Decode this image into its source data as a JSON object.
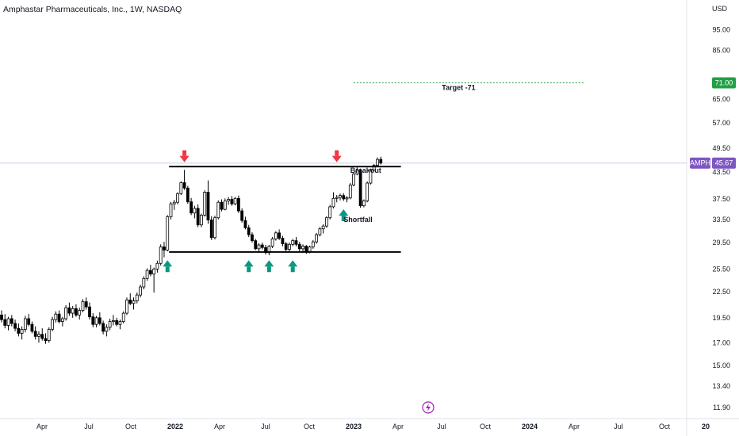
{
  "header": {
    "title": "Amphastar Pharmaceuticals, Inc., 1W, NASDAQ"
  },
  "chart_data": {
    "type": "candlestick",
    "symbol": "AMPH",
    "currency": "USD",
    "y_scale": "log",
    "ylim": [
      11.2,
      112
    ],
    "y_ticks": [
      "95.00",
      "85.00",
      "71.00",
      "65.00",
      "57.00",
      "49.50",
      "43.50",
      "37.50",
      "33.50",
      "29.50",
      "25.50",
      "22.50",
      "19.50",
      "17.00",
      "15.00",
      "13.40",
      "11.90"
    ],
    "x_labels": [
      "Apr",
      "Jul",
      "Oct",
      "2022",
      "Apr",
      "Jul",
      "Oct",
      "2023",
      "Apr",
      "Jul",
      "Oct",
      "2024",
      "Apr",
      "Jul",
      "Oct",
      "20"
    ],
    "candles": [
      {
        "o": 19.8,
        "h": 20.3,
        "l": 19.0,
        "c": 19.3
      },
      {
        "o": 19.3,
        "h": 19.9,
        "l": 18.4,
        "c": 18.7
      },
      {
        "o": 18.7,
        "h": 19.6,
        "l": 18.2,
        "c": 19.4
      },
      {
        "o": 19.4,
        "h": 19.8,
        "l": 18.6,
        "c": 18.9
      },
      {
        "o": 18.9,
        "h": 19.3,
        "l": 18.1,
        "c": 18.4
      },
      {
        "o": 18.4,
        "h": 18.9,
        "l": 17.6,
        "c": 17.9
      },
      {
        "o": 17.9,
        "h": 18.6,
        "l": 17.3,
        "c": 18.3
      },
      {
        "o": 18.3,
        "h": 19.7,
        "l": 18.0,
        "c": 19.4
      },
      {
        "o": 19.4,
        "h": 19.9,
        "l": 18.6,
        "c": 18.8
      },
      {
        "o": 18.8,
        "h": 19.1,
        "l": 17.9,
        "c": 18.1
      },
      {
        "o": 18.1,
        "h": 18.6,
        "l": 17.3,
        "c": 17.6
      },
      {
        "o": 17.6,
        "h": 18.1,
        "l": 17.0,
        "c": 17.8
      },
      {
        "o": 17.8,
        "h": 18.4,
        "l": 17.2,
        "c": 17.4
      },
      {
        "o": 17.4,
        "h": 17.9,
        "l": 16.9,
        "c": 17.2
      },
      {
        "o": 17.2,
        "h": 18.5,
        "l": 17.0,
        "c": 18.3
      },
      {
        "o": 18.3,
        "h": 19.6,
        "l": 18.1,
        "c": 19.3
      },
      {
        "o": 19.3,
        "h": 20.2,
        "l": 19.0,
        "c": 19.9
      },
      {
        "o": 19.9,
        "h": 20.3,
        "l": 18.9,
        "c": 19.1
      },
      {
        "o": 19.1,
        "h": 19.6,
        "l": 18.6,
        "c": 19.4
      },
      {
        "o": 19.4,
        "h": 20.9,
        "l": 19.2,
        "c": 20.6
      },
      {
        "o": 20.6,
        "h": 21.2,
        "l": 19.7,
        "c": 20.0
      },
      {
        "o": 20.0,
        "h": 20.8,
        "l": 19.5,
        "c": 20.5
      },
      {
        "o": 20.5,
        "h": 21.0,
        "l": 19.6,
        "c": 19.8
      },
      {
        "o": 19.8,
        "h": 20.6,
        "l": 19.3,
        "c": 20.3
      },
      {
        "o": 20.3,
        "h": 21.6,
        "l": 20.1,
        "c": 21.3
      },
      {
        "o": 21.3,
        "h": 21.8,
        "l": 20.4,
        "c": 20.7
      },
      {
        "o": 20.7,
        "h": 21.2,
        "l": 19.3,
        "c": 19.6
      },
      {
        "o": 19.6,
        "h": 20.0,
        "l": 18.5,
        "c": 18.8
      },
      {
        "o": 18.8,
        "h": 19.7,
        "l": 18.5,
        "c": 19.5
      },
      {
        "o": 19.5,
        "h": 20.1,
        "l": 18.7,
        "c": 18.9
      },
      {
        "o": 18.9,
        "h": 19.2,
        "l": 17.8,
        "c": 18.1
      },
      {
        "o": 18.1,
        "h": 18.8,
        "l": 17.6,
        "c": 18.5
      },
      {
        "o": 18.5,
        "h": 19.4,
        "l": 18.2,
        "c": 19.1
      },
      {
        "o": 19.1,
        "h": 19.8,
        "l": 18.7,
        "c": 19.2
      },
      {
        "o": 19.2,
        "h": 19.5,
        "l": 18.6,
        "c": 18.8
      },
      {
        "o": 18.8,
        "h": 19.3,
        "l": 18.3,
        "c": 19.1
      },
      {
        "o": 19.1,
        "h": 20.2,
        "l": 18.9,
        "c": 20.0
      },
      {
        "o": 20.0,
        "h": 21.8,
        "l": 19.8,
        "c": 21.5
      },
      {
        "o": 21.5,
        "h": 22.3,
        "l": 20.9,
        "c": 21.1
      },
      {
        "o": 21.1,
        "h": 21.8,
        "l": 20.4,
        "c": 21.4
      },
      {
        "o": 21.4,
        "h": 22.4,
        "l": 21.1,
        "c": 22.1
      },
      {
        "o": 22.1,
        "h": 23.4,
        "l": 21.8,
        "c": 23.1
      },
      {
        "o": 23.1,
        "h": 24.5,
        "l": 22.8,
        "c": 24.2
      },
      {
        "o": 24.2,
        "h": 25.6,
        "l": 23.9,
        "c": 25.3
      },
      {
        "o": 25.3,
        "h": 26.1,
        "l": 24.5,
        "c": 24.8
      },
      {
        "o": 24.8,
        "h": 25.7,
        "l": 22.4,
        "c": 25.5
      },
      {
        "o": 25.5,
        "h": 26.7,
        "l": 25.0,
        "c": 26.3
      },
      {
        "o": 26.3,
        "h": 29.2,
        "l": 26.0,
        "c": 28.8
      },
      {
        "o": 28.8,
        "h": 29.6,
        "l": 27.2,
        "c": 28.3
      },
      {
        "o": 28.3,
        "h": 34.3,
        "l": 28.1,
        "c": 34.0
      },
      {
        "o": 34.0,
        "h": 36.9,
        "l": 33.5,
        "c": 36.5
      },
      {
        "o": 36.5,
        "h": 37.3,
        "l": 35.3,
        "c": 36.8
      },
      {
        "o": 36.8,
        "h": 38.9,
        "l": 36.4,
        "c": 38.6
      },
      {
        "o": 38.6,
        "h": 41.3,
        "l": 38.3,
        "c": 41.0
      },
      {
        "o": 41.0,
        "h": 44.0,
        "l": 39.4,
        "c": 39.8
      },
      {
        "o": 39.8,
        "h": 40.3,
        "l": 36.5,
        "c": 36.9
      },
      {
        "o": 36.9,
        "h": 37.7,
        "l": 34.3,
        "c": 34.7
      },
      {
        "o": 34.7,
        "h": 36.1,
        "l": 33.7,
        "c": 35.6
      },
      {
        "o": 35.6,
        "h": 36.4,
        "l": 32.1,
        "c": 32.5
      },
      {
        "o": 32.5,
        "h": 34.6,
        "l": 32.1,
        "c": 34.3
      },
      {
        "o": 34.3,
        "h": 39.3,
        "l": 34.0,
        "c": 38.9
      },
      {
        "o": 38.9,
        "h": 41.5,
        "l": 32.7,
        "c": 33.4
      },
      {
        "o": 33.4,
        "h": 34.1,
        "l": 29.9,
        "c": 30.3
      },
      {
        "o": 30.3,
        "h": 34.2,
        "l": 30.0,
        "c": 33.8
      },
      {
        "o": 33.8,
        "h": 37.2,
        "l": 33.5,
        "c": 36.8
      },
      {
        "o": 36.8,
        "h": 37.4,
        "l": 35.0,
        "c": 35.4
      },
      {
        "o": 35.4,
        "h": 37.6,
        "l": 35.2,
        "c": 37.1
      },
      {
        "o": 37.1,
        "h": 37.9,
        "l": 36.3,
        "c": 37.4
      },
      {
        "o": 37.4,
        "h": 38.1,
        "l": 36.1,
        "c": 36.5
      },
      {
        "o": 36.5,
        "h": 37.9,
        "l": 36.2,
        "c": 37.6
      },
      {
        "o": 37.6,
        "h": 38.2,
        "l": 34.7,
        "c": 35.1
      },
      {
        "o": 35.1,
        "h": 35.6,
        "l": 32.9,
        "c": 33.3
      },
      {
        "o": 33.3,
        "h": 34.0,
        "l": 31.7,
        "c": 32.0
      },
      {
        "o": 32.0,
        "h": 32.5,
        "l": 30.4,
        "c": 30.8
      },
      {
        "o": 30.8,
        "h": 31.2,
        "l": 29.5,
        "c": 29.8
      },
      {
        "o": 29.8,
        "h": 30.1,
        "l": 28.3,
        "c": 28.5
      },
      {
        "o": 28.5,
        "h": 29.4,
        "l": 28.1,
        "c": 29.1
      },
      {
        "o": 29.1,
        "h": 29.5,
        "l": 28.4,
        "c": 28.7
      },
      {
        "o": 28.7,
        "h": 29.1,
        "l": 27.6,
        "c": 27.9
      },
      {
        "o": 27.9,
        "h": 29.1,
        "l": 27.5,
        "c": 28.9
      },
      {
        "o": 28.9,
        "h": 30.4,
        "l": 28.6,
        "c": 30.1
      },
      {
        "o": 30.1,
        "h": 31.4,
        "l": 29.8,
        "c": 31.1
      },
      {
        "o": 31.1,
        "h": 31.7,
        "l": 29.9,
        "c": 30.2
      },
      {
        "o": 30.2,
        "h": 30.6,
        "l": 28.9,
        "c": 29.3
      },
      {
        "o": 29.3,
        "h": 29.6,
        "l": 28.1,
        "c": 28.4
      },
      {
        "o": 28.4,
        "h": 29.5,
        "l": 28.1,
        "c": 29.2
      },
      {
        "o": 29.2,
        "h": 30.1,
        "l": 28.9,
        "c": 29.8
      },
      {
        "o": 29.8,
        "h": 30.4,
        "l": 28.9,
        "c": 29.2
      },
      {
        "o": 29.2,
        "h": 29.6,
        "l": 28.1,
        "c": 28.5
      },
      {
        "o": 28.5,
        "h": 29.2,
        "l": 27.9,
        "c": 28.9
      },
      {
        "o": 28.9,
        "h": 29.1,
        "l": 27.7,
        "c": 28.0
      },
      {
        "o": 28.0,
        "h": 29.0,
        "l": 27.8,
        "c": 28.8
      },
      {
        "o": 28.8,
        "h": 29.9,
        "l": 28.5,
        "c": 29.6
      },
      {
        "o": 29.6,
        "h": 31.1,
        "l": 29.3,
        "c": 30.8
      },
      {
        "o": 30.8,
        "h": 32.1,
        "l": 30.5,
        "c": 31.8
      },
      {
        "o": 31.8,
        "h": 32.6,
        "l": 31.0,
        "c": 32.3
      },
      {
        "o": 32.3,
        "h": 34.1,
        "l": 32.0,
        "c": 33.8
      },
      {
        "o": 33.8,
        "h": 36.3,
        "l": 33.5,
        "c": 35.9
      },
      {
        "o": 35.9,
        "h": 38.9,
        "l": 35.6,
        "c": 37.6
      },
      {
        "o": 37.6,
        "h": 38.3,
        "l": 36.8,
        "c": 37.8
      },
      {
        "o": 37.8,
        "h": 38.6,
        "l": 37.2,
        "c": 38.2
      },
      {
        "o": 38.2,
        "h": 38.7,
        "l": 37.1,
        "c": 37.5
      },
      {
        "o": 37.5,
        "h": 38.1,
        "l": 36.8,
        "c": 37.7
      },
      {
        "o": 37.7,
        "h": 40.9,
        "l": 37.4,
        "c": 40.5
      },
      {
        "o": 40.5,
        "h": 43.4,
        "l": 40.2,
        "c": 43.0
      },
      {
        "o": 43.0,
        "h": 44.6,
        "l": 42.7,
        "c": 43.9
      },
      {
        "o": 43.9,
        "h": 44.3,
        "l": 35.7,
        "c": 36.1
      },
      {
        "o": 36.1,
        "h": 37.4,
        "l": 35.8,
        "c": 37.1
      },
      {
        "o": 37.1,
        "h": 41.3,
        "l": 36.8,
        "c": 40.9
      },
      {
        "o": 40.9,
        "h": 44.3,
        "l": 40.6,
        "c": 43.9
      },
      {
        "o": 43.9,
        "h": 45.4,
        "l": 43.6,
        "c": 45.1
      },
      {
        "o": 45.1,
        "h": 47.1,
        "l": 44.8,
        "c": 46.6
      },
      {
        "o": 46.6,
        "h": 47.3,
        "l": 45.3,
        "c": 45.67
      }
    ],
    "annotations": [
      {
        "text": "Breakout",
        "x_index": 103,
        "price": 43.3
      },
      {
        "text": "Shortfall",
        "x_index": 101,
        "price": 33.0
      },
      {
        "text": "Target -71",
        "x_index": 135,
        "price": 68.2
      }
    ],
    "levels": {
      "resistance": {
        "price": 44.8,
        "from_index": 49,
        "to_index": 117
      },
      "support": {
        "price": 28.0,
        "from_index": 49,
        "to_index": 117
      },
      "target": {
        "price": 71.0,
        "from_index": 103,
        "to_index": 170
      }
    },
    "markers": {
      "down": [
        {
          "x_index": 54,
          "price": 46.5
        },
        {
          "x_index": 99,
          "price": 46.5
        }
      ],
      "up": [
        {
          "x_index": 49,
          "price": 26.3
        },
        {
          "x_index": 73,
          "price": 26.3
        },
        {
          "x_index": 79,
          "price": 26.3
        },
        {
          "x_index": 86,
          "price": 26.3
        },
        {
          "x_index": 101,
          "price": 34.8
        }
      ]
    },
    "price_tags": [
      {
        "symbol": "",
        "value": "71.00",
        "price": 71.0,
        "color": "#22a046"
      },
      {
        "symbol": "AMPH",
        "value": "45.67",
        "price": 45.67,
        "color": "#7e57c2"
      }
    ],
    "colors": {
      "up_body": "#ffffff",
      "down_body": "#000000",
      "wick": "#000000",
      "marker_up": "#089981",
      "marker_down": "#f23645",
      "target_line": "#22a046",
      "last_price_line": "#c9cfe8"
    }
  },
  "icons": {
    "bottom_center": "lightning-bolt-icon"
  }
}
